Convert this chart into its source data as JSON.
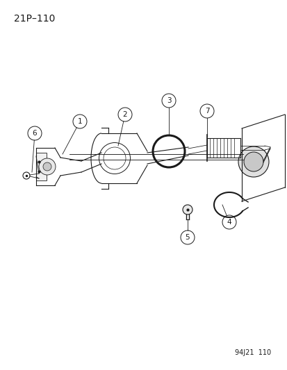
{
  "page_label": "21P–110",
  "footer_label": "94J21  110",
  "bg_color": "#ffffff",
  "line_color": "#1a1a1a",
  "page_label_font_size": 10,
  "footer_font_size": 7
}
